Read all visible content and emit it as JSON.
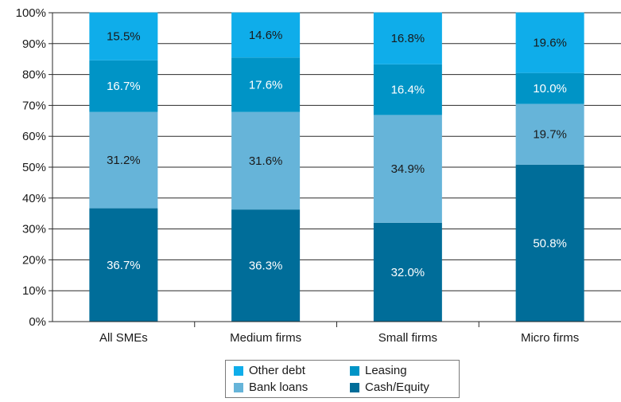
{
  "chart_data": {
    "type": "bar",
    "stacked": true,
    "categories": [
      "All SMEs",
      "Medium firms",
      "Small firms",
      "Micro firms"
    ],
    "series": [
      {
        "name": "Cash/Equity",
        "color": "#006d99",
        "label_color": "#ffffff",
        "values": [
          36.7,
          36.3,
          32.0,
          50.8
        ]
      },
      {
        "name": "Bank loans",
        "color": "#66b4d9",
        "label_color": "#1a1a1a",
        "values": [
          31.2,
          31.6,
          34.9,
          19.7
        ]
      },
      {
        "name": "Leasing",
        "color": "#0094c6",
        "label_color": "#ffffff",
        "values": [
          16.7,
          17.6,
          16.4,
          10.0
        ]
      },
      {
        "name": "Other debt",
        "color": "#0fadea",
        "label_color": "#1a1a1a",
        "values": [
          15.5,
          14.6,
          16.8,
          19.6
        ]
      }
    ],
    "value_format": "percent_1dp",
    "ylim": [
      0,
      100
    ],
    "y_ticks": [
      "0%",
      "10%",
      "20%",
      "30%",
      "40%",
      "50%",
      "60%",
      "70%",
      "80%",
      "90%",
      "100%"
    ],
    "grid": "horizontal",
    "legend_position": "bottom-center",
    "legend": [
      {
        "name": "Other debt",
        "color": "#0fadea"
      },
      {
        "name": "Leasing",
        "color": "#0094c6"
      },
      {
        "name": "Bank loans",
        "color": "#66b4d9"
      },
      {
        "name": "Cash/Equity",
        "color": "#006d99"
      }
    ],
    "title": "",
    "xlabel": "",
    "ylabel": ""
  }
}
